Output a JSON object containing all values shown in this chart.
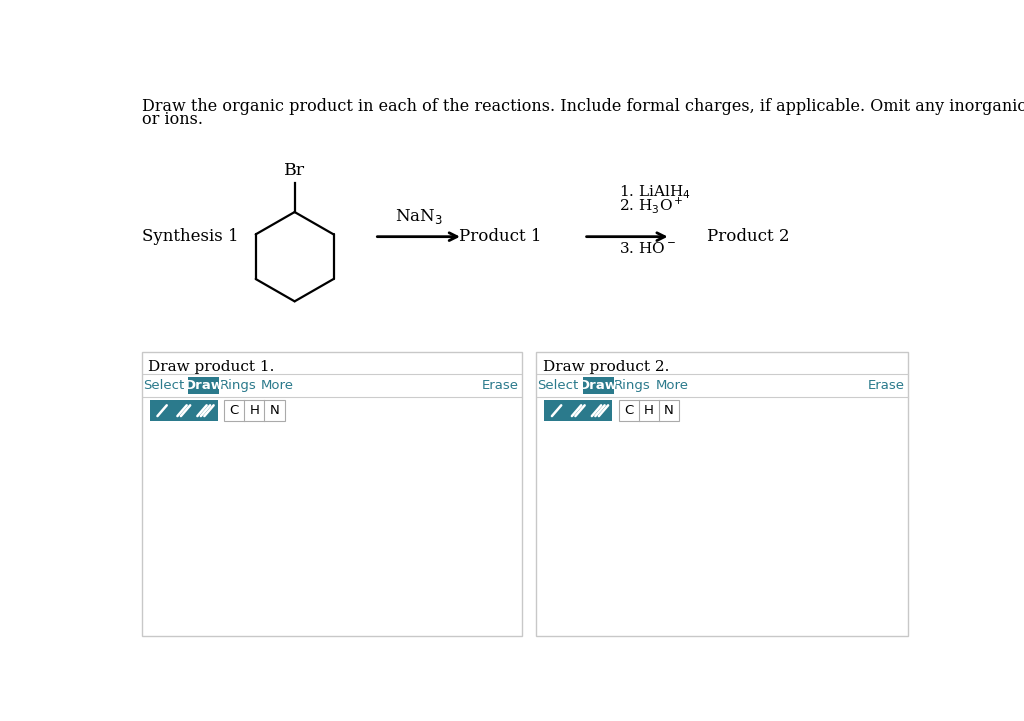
{
  "bg_color": "#ffffff",
  "header_text_line1": "Draw the organic product in each of the reactions. Include formal charges, if applicable. Omit any inorganic byproducts",
  "header_text_line2": "or ions.",
  "synthesis_label": "Synthesis 1",
  "reagent1": "NaN₃",
  "product1_label": "Product 1",
  "product2_label": "Product 2",
  "br_label": "Br",
  "draw_box1_title": "Draw product 1.",
  "draw_box2_title": "Draw product 2.",
  "teal_color": "#2b7a8c",
  "box_border_color": "#c8c8c8",
  "draw_btn_color": "#2b7a8c",
  "reagent2_line1": "1. LiAlH₄",
  "reagent2_line2": "2. H₃O⁺",
  "reagent2_line3": "3. HO⁻",
  "font_family": "serif",
  "header_fontsize": 11.5,
  "label_fontsize": 12,
  "toolbar_fontsize": 10
}
